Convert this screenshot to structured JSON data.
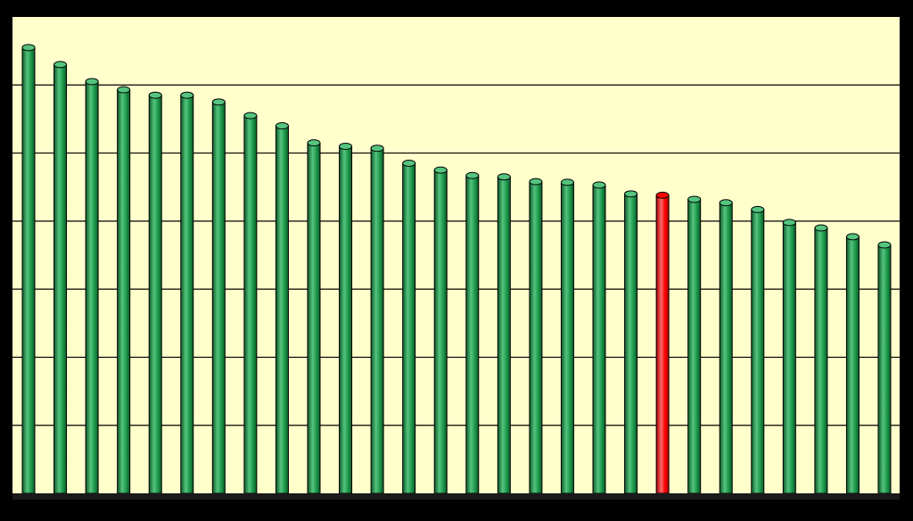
{
  "colors": {
    "background": "#000000",
    "plot_area": "#FFFFCC",
    "gridline": "#000000",
    "bar": "#1E9A4C",
    "bar_dark": "#0B5A28",
    "bar_light": "#55C47E",
    "highlight": "#FF0000",
    "highlight_dark": "#A80000",
    "highlight_light": "#FF6B6B"
  },
  "chart_data": {
    "type": "bar",
    "style": "3d-cylinder",
    "title": "",
    "xlabel": "",
    "ylabel": "",
    "ylim": [
      0,
      7
    ],
    "gridlines": [
      1,
      2,
      3,
      4,
      5,
      6
    ],
    "grid": true,
    "legend": "none",
    "tick_labels_visible": false,
    "highlight_index": 20,
    "values": [
      6.55,
      6.3,
      6.05,
      5.93,
      5.85,
      5.85,
      5.75,
      5.55,
      5.4,
      5.15,
      5.1,
      5.07,
      4.85,
      4.75,
      4.67,
      4.65,
      4.58,
      4.57,
      4.53,
      4.4,
      4.38,
      4.32,
      4.27,
      4.17,
      3.98,
      3.9,
      3.77,
      3.65
    ]
  }
}
